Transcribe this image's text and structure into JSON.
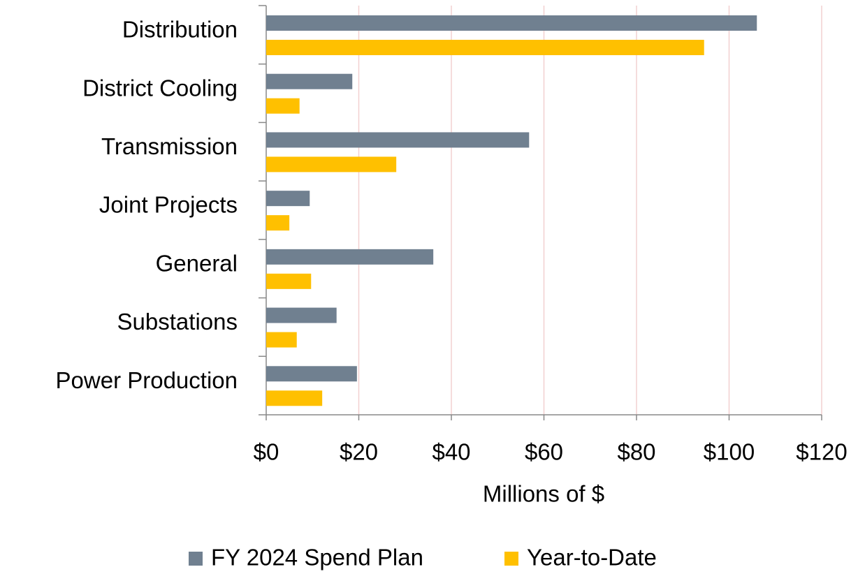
{
  "chart_data": {
    "type": "bar",
    "orientation": "horizontal",
    "categories": [
      "Distribution",
      "District Cooling",
      "Transmission",
      "Joint Projects",
      "General",
      "Substations",
      "Power Production"
    ],
    "series": [
      {
        "name": "FY 2024 Spend Plan",
        "color": "#708090",
        "values": [
          106,
          18.6,
          56.8,
          9.4,
          36.1,
          15.2,
          19.6
        ]
      },
      {
        "name": "Year-to-Date",
        "color": "#ffc000",
        "values": [
          94.6,
          7.2,
          28.1,
          5.0,
          9.7,
          6.6,
          12.1
        ]
      }
    ],
    "x_label": "Millions of $",
    "xlim": [
      0,
      120
    ],
    "xticks": [
      {
        "value": 0,
        "label": "$0"
      },
      {
        "value": 20,
        "label": "$20"
      },
      {
        "value": 40,
        "label": "$40"
      },
      {
        "value": 60,
        "label": "$60"
      },
      {
        "value": 80,
        "label": "$80"
      },
      {
        "value": 100,
        "label": "$100"
      },
      {
        "value": 120,
        "label": "$120"
      }
    ],
    "grid": true,
    "legend": "bottom"
  }
}
